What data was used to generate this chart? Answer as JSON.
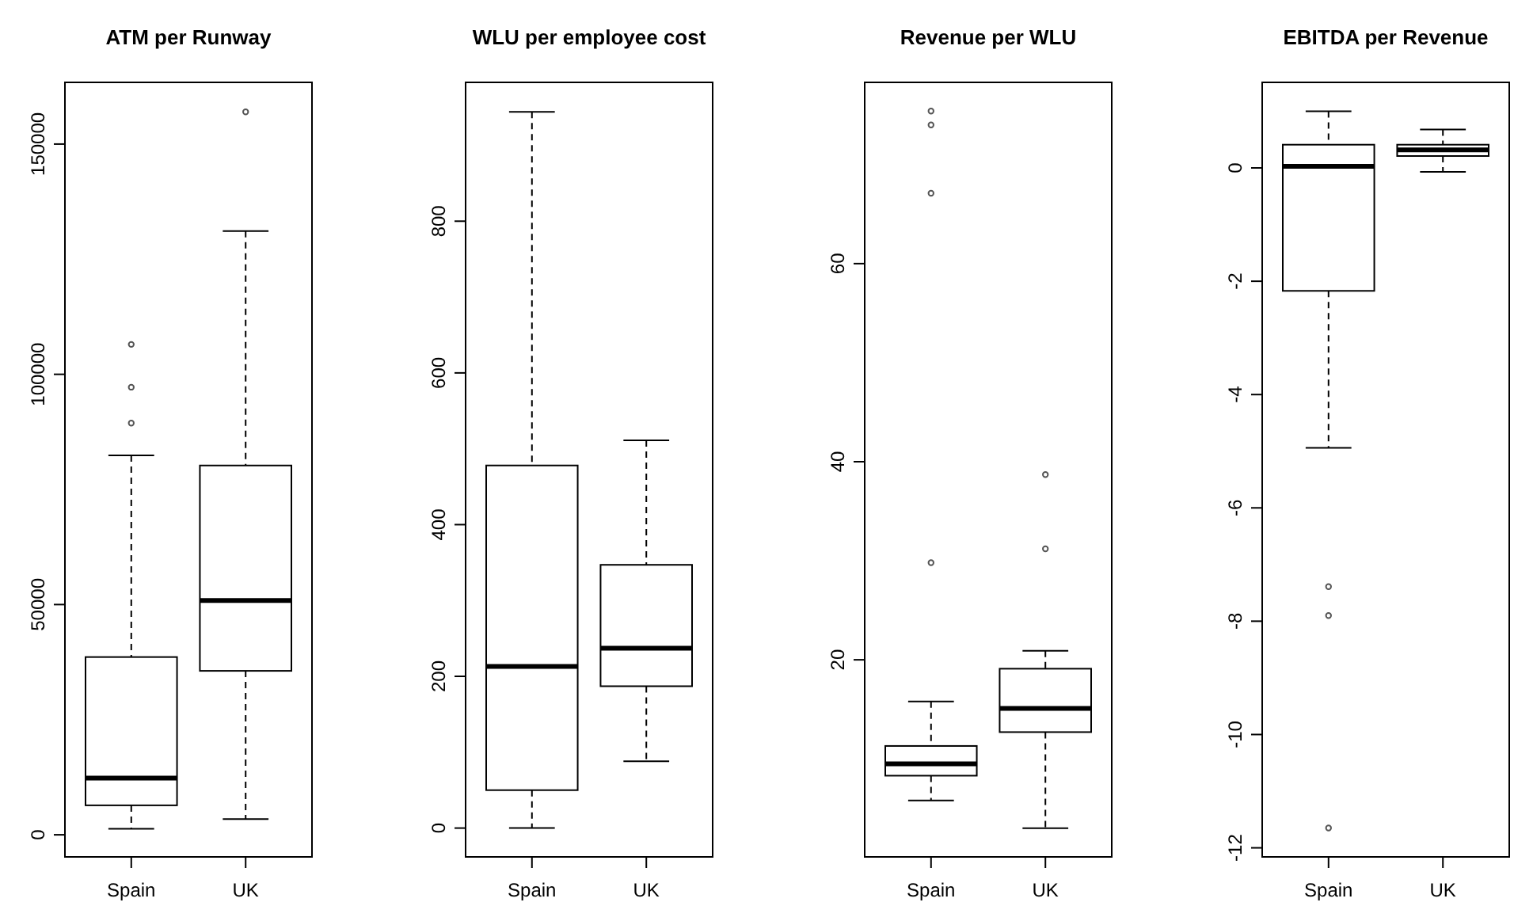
{
  "chart_data": [
    {
      "type": "box",
      "title": "ATM per Runway",
      "categories": [
        "Spain",
        "UK"
      ],
      "ylim": [
        -4800,
        163400
      ],
      "yticks": [
        0,
        50000,
        100000,
        150000
      ],
      "boxes": [
        {
          "low": 1300,
          "q1": 6400,
          "median": 12300,
          "q3": 38600,
          "high": 82400,
          "outliers": [
            89400,
            97200,
            106500
          ]
        },
        {
          "low": 3400,
          "q1": 35600,
          "median": 50900,
          "q3": 80200,
          "high": 131100,
          "outliers": [
            157000
          ]
        }
      ]
    },
    {
      "type": "box",
      "title": "WLU per employee cost",
      "categories": [
        "Spain",
        "UK"
      ],
      "ylim": [
        -38,
        983
      ],
      "yticks": [
        0,
        200,
        400,
        600,
        800
      ],
      "boxes": [
        {
          "low": 0,
          "q1": 50,
          "median": 213,
          "q3": 478,
          "high": 944
        },
        {
          "low": 88,
          "q1": 187,
          "median": 237,
          "q3": 347,
          "high": 511
        }
      ]
    },
    {
      "type": "box",
      "title": "Revenue per WLU",
      "categories": [
        "Spain",
        "UK"
      ],
      "ylim": [
        0.1,
        78.3
      ],
      "yticks": [
        20,
        40,
        60
      ],
      "boxes": [
        {
          "low": 5.8,
          "q1": 8.3,
          "median": 9.5,
          "q3": 11.3,
          "high": 15.8,
          "outliers": [
            29.8,
            67.1,
            74.0,
            75.4
          ]
        },
        {
          "low": 3.0,
          "q1": 12.7,
          "median": 15.1,
          "q3": 19.1,
          "high": 20.9,
          "outliers": [
            31.2,
            38.7
          ]
        }
      ]
    },
    {
      "type": "box",
      "title": "EBITDA per Revenue",
      "categories": [
        "Spain",
        "UK"
      ],
      "ylim": [
        -12.16,
        1.51
      ],
      "yticks": [
        0,
        -2,
        -4,
        -6,
        -8,
        -10,
        -12
      ],
      "boxes": [
        {
          "low": -4.94,
          "q1": -2.17,
          "median": 0.03,
          "q3": 0.41,
          "high": 1.0,
          "outliers": [
            -7.39,
            -7.9,
            -11.65
          ]
        },
        {
          "low": -0.07,
          "q1": 0.21,
          "median": 0.32,
          "q3": 0.41,
          "high": 0.68
        }
      ]
    }
  ]
}
